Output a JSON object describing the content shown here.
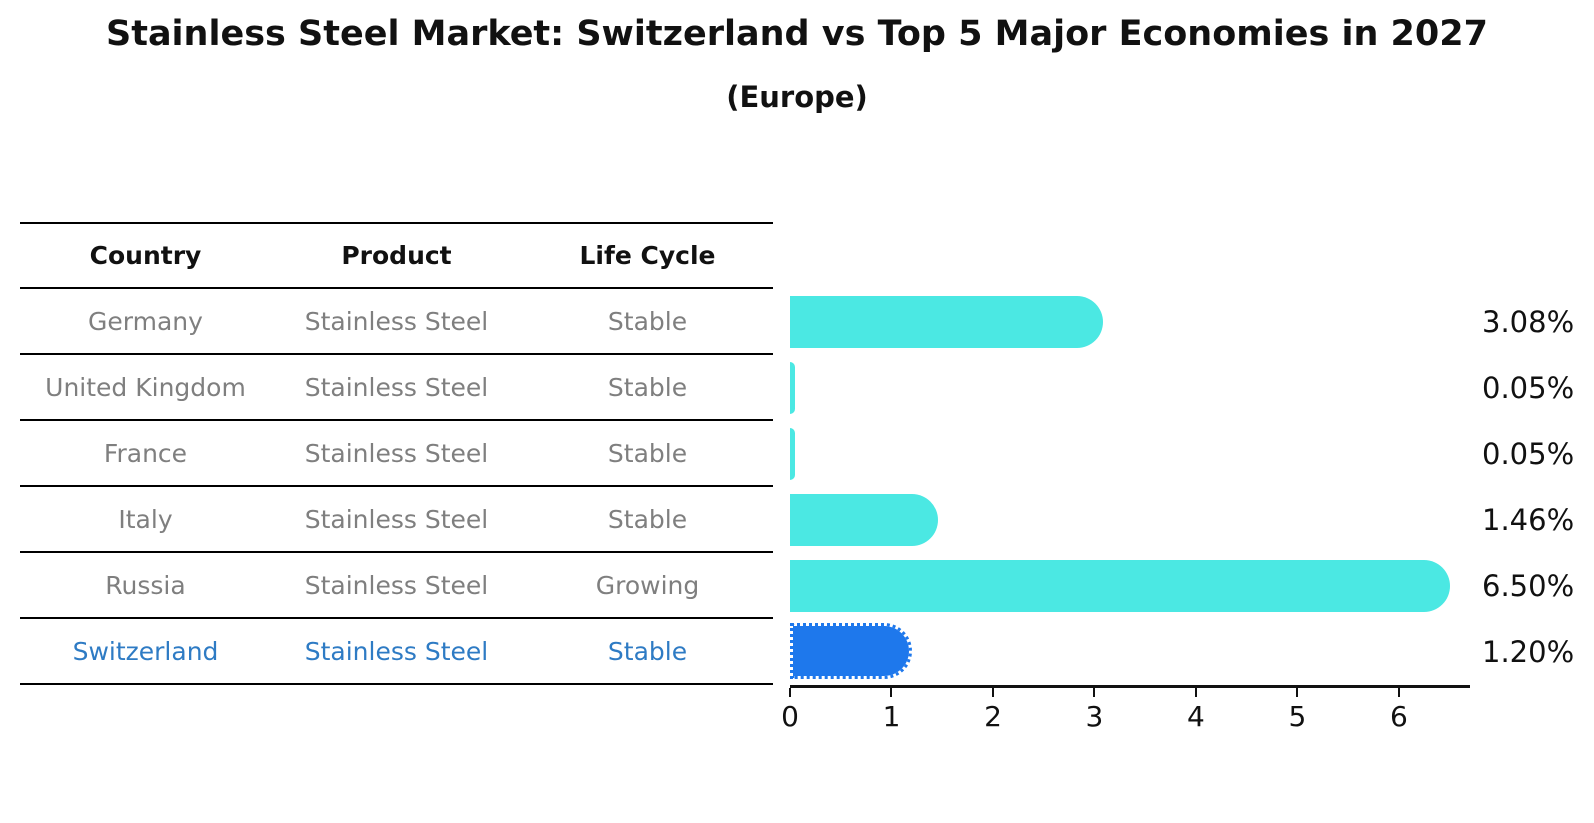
{
  "title": "Stainless Steel Market: Switzerland vs Top 5 Major Economies in 2027",
  "subtitle": "(Europe)",
  "colors": {
    "bar": "#4BE8E3",
    "highlight_bar": "#1E78EC",
    "highlight_text": "#2E7BC4",
    "table_text_gray": "#7F7F7F",
    "heading_text": "#111111",
    "line_black": "#000000"
  },
  "table": {
    "headers": [
      "Country",
      "Product",
      "Life Cycle"
    ],
    "rows": [
      {
        "country": "Germany",
        "product": "Stainless Steel",
        "life_cycle": "Stable",
        "share_label": "3.08%",
        "highlighted": false
      },
      {
        "country": "United Kingdom",
        "product": "Stainless Steel",
        "life_cycle": "Stable",
        "share_label": "0.05%",
        "highlighted": false
      },
      {
        "country": "France",
        "product": "Stainless Steel",
        "life_cycle": "Stable",
        "share_label": "0.05%",
        "highlighted": false
      },
      {
        "country": "Italy",
        "product": "Stainless Steel",
        "life_cycle": "Stable",
        "share_label": "1.46%",
        "highlighted": false
      },
      {
        "country": "Russia",
        "product": "Stainless Steel",
        "life_cycle": "Growing",
        "share_label": "6.50%",
        "highlighted": false
      },
      {
        "country": "Switzerland",
        "product": "Stainless Steel",
        "life_cycle": "Stable",
        "share_label": "1.20%",
        "highlighted": true
      }
    ]
  },
  "chart_data": {
    "type": "bar",
    "orientation": "horizontal",
    "title": "Stainless Steel Market: Switzerland vs Top 5 Major Economies in 2027 (Europe)",
    "categories": [
      "Germany",
      "United Kingdom",
      "France",
      "Italy",
      "Russia",
      "Switzerland"
    ],
    "values": [
      3.08,
      0.05,
      0.05,
      1.46,
      6.5,
      1.2
    ],
    "value_labels": [
      "3.08%",
      "0.05%",
      "0.05%",
      "1.46%",
      "6.50%",
      "1.20%"
    ],
    "highlight_index": 5,
    "xlabel": "",
    "ylabel": "",
    "xticks": [
      0,
      1,
      2,
      3,
      4,
      5,
      6
    ],
    "xlim": [
      0,
      6.7
    ],
    "grid": false,
    "legend": false
  }
}
